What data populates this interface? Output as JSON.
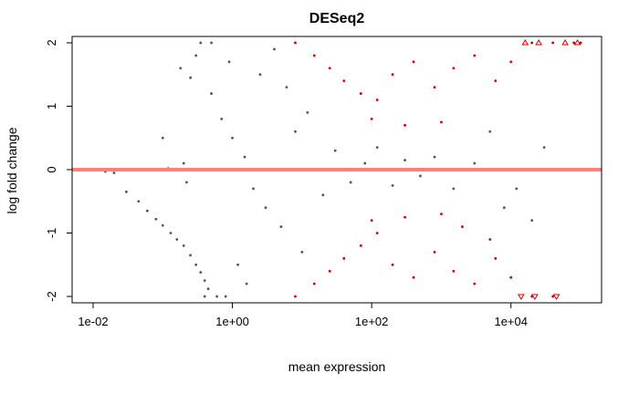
{
  "chart_data": {
    "type": "scatter",
    "title": "DESeq2",
    "xlabel": "mean expression",
    "ylabel": "log fold change",
    "x_scale": "log10",
    "xlim": [
      0.005,
      200000
    ],
    "ylim": [
      -2.1,
      2.1
    ],
    "x_ticks": [
      {
        "value": 0.01,
        "label": "1e-02"
      },
      {
        "value": 1,
        "label": "1e+00"
      },
      {
        "value": 100,
        "label": "1e+02"
      },
      {
        "value": 10000,
        "label": "1e+04"
      }
    ],
    "y_ticks": [
      {
        "value": -2,
        "label": "-2"
      },
      {
        "value": -1,
        "label": "-1"
      },
      {
        "value": 0,
        "label": "0"
      },
      {
        "value": 1,
        "label": "1"
      },
      {
        "value": 2,
        "label": "2"
      }
    ],
    "reference_line": {
      "y": 0,
      "color": "#ff7f7f"
    },
    "series": [
      {
        "color": "#555555",
        "points": [
          [
            0.015,
            -0.03
          ],
          [
            0.02,
            -0.05
          ],
          [
            0.03,
            -0.35
          ],
          [
            0.045,
            -0.5
          ],
          [
            0.06,
            -0.65
          ],
          [
            0.08,
            -0.78
          ],
          [
            0.1,
            -0.88
          ],
          [
            0.13,
            -1.0
          ],
          [
            0.16,
            -1.1
          ],
          [
            0.2,
            -1.2
          ],
          [
            0.25,
            -1.35
          ],
          [
            0.3,
            -1.5
          ],
          [
            0.35,
            -1.62
          ],
          [
            0.4,
            -1.75
          ],
          [
            0.45,
            -1.88
          ],
          [
            0.25,
            1.45
          ],
          [
            0.18,
            1.6
          ],
          [
            0.3,
            1.8
          ],
          [
            0.35,
            2.0
          ],
          [
            0.5,
            2.0
          ],
          [
            0.1,
            0.5
          ],
          [
            0.12,
            0.02
          ],
          [
            0.15,
            0.0
          ],
          [
            0.2,
            0.1
          ],
          [
            0.22,
            -0.2
          ],
          [
            0.5,
            1.2
          ],
          [
            0.7,
            0.8
          ],
          [
            1.0,
            0.5
          ],
          [
            1.5,
            0.2
          ],
          [
            2.0,
            -0.3
          ],
          [
            3.0,
            -0.6
          ],
          [
            5.0,
            -0.9
          ],
          [
            8.0,
            0.6
          ],
          [
            12,
            0.9
          ],
          [
            20,
            -0.4
          ],
          [
            30,
            0.3
          ],
          [
            50,
            -0.2
          ],
          [
            80,
            0.1
          ],
          [
            120,
            0.35
          ],
          [
            200,
            -0.25
          ],
          [
            300,
            0.15
          ],
          [
            500,
            -0.1
          ],
          [
            800,
            0.2
          ],
          [
            1500,
            -0.3
          ],
          [
            3000,
            0.1
          ],
          [
            5000,
            0.6
          ],
          [
            8000,
            -0.6
          ],
          [
            12000,
            -0.3
          ],
          [
            20000,
            -0.8
          ],
          [
            30000,
            0.35
          ],
          [
            0.6,
            -2.0
          ],
          [
            0.8,
            -2.0
          ],
          [
            0.4,
            -2.0
          ],
          [
            1.2,
            -1.5
          ],
          [
            0.9,
            1.7
          ],
          [
            2.5,
            1.5
          ],
          [
            4.0,
            1.9
          ],
          [
            1.6,
            -1.8
          ],
          [
            6.0,
            1.3
          ],
          [
            10,
            -1.3
          ]
        ]
      },
      {
        "color": "#cc0000",
        "points": [
          [
            8,
            2.0
          ],
          [
            15,
            1.8
          ],
          [
            25,
            1.6
          ],
          [
            40,
            1.4
          ],
          [
            70,
            1.2
          ],
          [
            120,
            1.1
          ],
          [
            200,
            1.5
          ],
          [
            400,
            1.7
          ],
          [
            800,
            1.3
          ],
          [
            1500,
            1.6
          ],
          [
            3000,
            1.8
          ],
          [
            6000,
            1.4
          ],
          [
            10000,
            1.7
          ],
          [
            20000,
            2.0
          ],
          [
            40000,
            2.0
          ],
          [
            80000,
            2.0
          ],
          [
            100000,
            2.0
          ],
          [
            100,
            0.8
          ],
          [
            300,
            0.7
          ],
          [
            1000,
            0.75
          ],
          [
            8,
            -2.0
          ],
          [
            15,
            -1.8
          ],
          [
            25,
            -1.6
          ],
          [
            40,
            -1.4
          ],
          [
            70,
            -1.2
          ],
          [
            120,
            -1.0
          ],
          [
            200,
            -1.5
          ],
          [
            400,
            -1.7
          ],
          [
            800,
            -1.3
          ],
          [
            1500,
            -1.6
          ],
          [
            3000,
            -1.8
          ],
          [
            6000,
            -1.4
          ],
          [
            10000,
            -1.7
          ],
          [
            20000,
            -2.0
          ],
          [
            40000,
            -2.0
          ],
          [
            100,
            -0.8
          ],
          [
            300,
            -0.75
          ],
          [
            1000,
            -0.7
          ],
          [
            5000,
            -1.1
          ],
          [
            2000,
            -0.9
          ]
        ],
        "clipped_markers": [
          [
            16000,
            2.0
          ],
          [
            25000,
            2.0
          ],
          [
            60000,
            2.0
          ],
          [
            90000,
            2.0
          ],
          [
            14000,
            -2.0
          ],
          [
            22000,
            -2.0
          ],
          [
            45000,
            -2.0
          ]
        ]
      }
    ]
  }
}
